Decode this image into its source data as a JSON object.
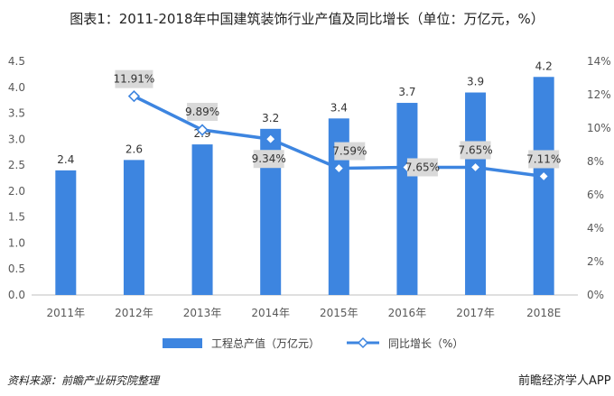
{
  "chart_data": {
    "type": "bar",
    "title": "图表1：2011-2018年中国建筑装饰行业产值及同比增长（单位：万亿元，%）",
    "categories": [
      "2011年",
      "2012年",
      "2013年",
      "2014年",
      "2015年",
      "2016年",
      "2017年",
      "2018E"
    ],
    "series": [
      {
        "name": "工程总产值（万亿元）",
        "type": "bar",
        "axis": "left",
        "color": "#3d85e0",
        "values": [
          2.4,
          2.6,
          2.9,
          3.2,
          3.4,
          3.7,
          3.9,
          4.2
        ],
        "labels": [
          "2.4",
          "2.6",
          "2.9",
          "3.2",
          "3.4",
          "3.7",
          "3.9",
          "4.2"
        ]
      },
      {
        "name": "同比增长（%）",
        "type": "line",
        "axis": "right",
        "color": "#3d85e0",
        "values": [
          null,
          11.91,
          9.89,
          9.34,
          7.59,
          7.65,
          7.65,
          7.11
        ],
        "labels": [
          "",
          "11.91%",
          "9.89%",
          "9.34%",
          "7.59%",
          "7.65%",
          "7.65%",
          "7.11%"
        ]
      }
    ],
    "y_left": {
      "range": [
        0,
        4.5
      ],
      "ticks": [
        "0.0",
        "0.5",
        "1.0",
        "1.5",
        "2.0",
        "2.5",
        "3.0",
        "3.5",
        "4.0",
        "4.5"
      ]
    },
    "y_right": {
      "range": [
        0,
        14
      ],
      "ticks": [
        "0%",
        "2%",
        "4%",
        "6%",
        "8%",
        "10%",
        "12%",
        "14%"
      ]
    },
    "grid": false,
    "legend_position": "bottom"
  },
  "footer": {
    "source": "资料来源：前瞻产业研究院整理",
    "brand": "前瞻经济学人APP"
  }
}
